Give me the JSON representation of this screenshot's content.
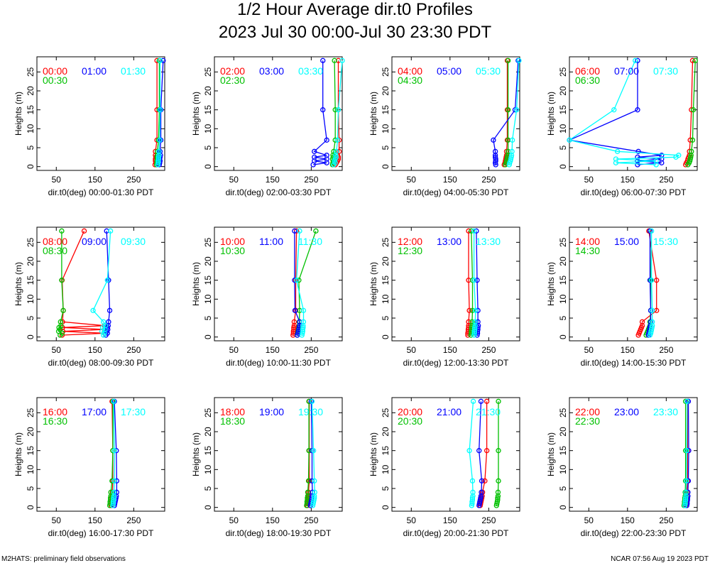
{
  "title": "1/2 Hour Average dir.t0 Profiles",
  "subtitle": "2023 Jul 30 00:00-Jul 30 23:30 PDT",
  "footer_left": "M2HATS: preliminary field observations",
  "footer_right": "NCAR 07:56 Aug 19 2023 PDT",
  "colors": [
    "#ff0000",
    "#00c000",
    "#0000ff",
    "#00ffff"
  ],
  "chart_data": {
    "type": "line",
    "ylabel": "Heights (m)",
    "xlim": [
      0,
      330
    ],
    "ylim": [
      -1,
      29
    ],
    "xticks": [
      50,
      150,
      250
    ],
    "yticks": [
      0,
      5,
      10,
      15,
      20,
      25
    ],
    "heights": [
      0.5,
      1,
      1.5,
      2,
      2.5,
      3,
      4,
      7,
      15,
      28
    ],
    "panels": [
      {
        "xlabel": "dir.t0(deg) 00:00-01:30 PDT",
        "series": [
          {
            "name": "00:00",
            "values": [
              305,
              307,
              306,
              306,
              307,
              306,
              306,
              310,
              310,
              310
            ]
          },
          {
            "name": "00:30",
            "values": [
              309,
              310,
              310,
              311,
              310,
              311,
              311,
              314,
              316,
              316
            ]
          },
          {
            "name": "01:00",
            "values": [
              316,
              317,
              318,
              317,
              318,
              319,
              318,
              320,
              320,
              326
            ]
          },
          {
            "name": "01:30",
            "values": [
              312,
              313,
              313,
              314,
              314,
              315,
              315,
              317,
              318,
              318
            ]
          }
        ]
      },
      {
        "xlabel": "dir.t0(deg) 02:00-03:30 PDT",
        "series": [
          {
            "name": "02:00",
            "values": [
              312,
              315,
              318,
              320,
              320,
              318,
              322,
              322,
              320,
              320
            ]
          },
          {
            "name": "02:30",
            "values": [
              305,
              306,
              308,
              305,
              307,
              306,
              308,
              312,
              312,
              310
            ]
          },
          {
            "name": "03:00",
            "values": [
              255,
              290,
              258,
              290,
              258,
              290,
              258,
              290,
              280,
              280
            ]
          },
          {
            "name": "03:30",
            "values": [
              308,
              312,
              310,
              312,
              314,
              313,
              315,
              318,
              320,
              330
            ]
          }
        ]
      },
      {
        "xlabel": "dir.t0(deg) 04:00-05:30 PDT",
        "series": [
          {
            "name": "04:00",
            "values": [
              290,
              292,
              293,
              294,
              295,
              296,
              296,
              298,
              298,
              298
            ]
          },
          {
            "name": "04:30",
            "values": [
              293,
              295,
              296,
              297,
              298,
              299,
              300,
              300,
              300,
              300
            ]
          },
          {
            "name": "05:00",
            "values": [
              268,
              267,
              268,
              268,
              267,
              267,
              267,
              262,
              318,
              326
            ]
          },
          {
            "name": "05:30",
            "values": [
              303,
              304,
              306,
              307,
              308,
              309,
              310,
              311,
              322,
              328
            ]
          }
        ]
      },
      {
        "xlabel": "dir.t0(deg) 06:00-07:30 PDT",
        "series": [
          {
            "name": "06:00",
            "values": [
              300,
              302,
              305,
              306,
              308,
              310,
              310,
              312,
              315,
              318
            ]
          },
          {
            "name": "06:30",
            "values": [
              306,
              309,
              311,
              312,
              313,
              314,
              315,
              318,
              320,
              325
            ]
          },
          {
            "name": "07:00",
            "values": [
              176,
              238,
              176,
              238,
              176,
              238,
              178,
              0,
              176,
              176
            ]
          },
          {
            "name": "07:30",
            "values": [
              224,
              120,
              224,
              120,
              275,
              282,
              124,
              0,
              115,
              170
            ]
          }
        ]
      },
      {
        "xlabel": "dir.t0(deg) 08:00-09:30 PDT",
        "series": [
          {
            "name": "08:00",
            "values": [
              65,
              175,
              67,
              175,
              66,
              175,
              66,
              68,
              65,
              122
            ]
          },
          {
            "name": "08:30",
            "values": [
              60,
              65,
              56,
              60,
              57,
              62,
              61,
              68,
              64,
              64
            ]
          },
          {
            "name": "09:00",
            "values": [
              178,
              182,
              180,
              183,
              182,
              184,
              185,
              188,
              185,
              180
            ]
          },
          {
            "name": "09:30",
            "values": [
              172,
              174,
              168,
              176,
              170,
              177,
              172,
              145,
              182,
              190
            ]
          }
        ]
      },
      {
        "xlabel": "dir.t0(deg) 10:00-11:30 PDT",
        "series": [
          {
            "name": "10:00",
            "values": [
              203,
              204,
              204,
              205,
              205,
              206,
              206,
              210,
              210,
              212
            ]
          },
          {
            "name": "10:30",
            "values": [
              214,
              215,
              216,
              217,
              218,
              219,
              219,
              220,
              218,
              262
            ]
          },
          {
            "name": "11:00",
            "values": [
              214,
              216,
              217,
              218,
              219,
              220,
              220,
              208,
              207,
              207
            ]
          },
          {
            "name": "11:30",
            "values": [
              226,
              227,
              228,
              228,
              229,
              229,
              230,
              230,
              212,
              220
            ]
          }
        ]
      },
      {
        "xlabel": "dir.t0(deg) 12:00-13:30 PDT",
        "series": [
          {
            "name": "12:00",
            "values": [
              196,
              196,
              197,
              197,
              198,
              198,
              198,
              200,
              198,
              198
            ]
          },
          {
            "name": "12:30",
            "values": [
              204,
              205,
              205,
              206,
              206,
              207,
              207,
              208,
              208,
              205
            ]
          },
          {
            "name": "13:00",
            "values": [
              220,
              221,
              221,
              222,
              222,
              223,
              222,
              222,
              220,
              218
            ]
          },
          {
            "name": "13:30",
            "values": [
              212,
              213,
              213,
              214,
              214,
              215,
              215,
              216,
              212,
              212
            ]
          }
        ]
      },
      {
        "xlabel": "dir.t0(deg) 14:00-15:30 PDT",
        "series": [
          {
            "name": "14:00",
            "values": [
              178,
              180,
              182,
              184,
              186,
              188,
              188,
              225,
              225,
              205
            ]
          },
          {
            "name": "14:30",
            "values": [
              198,
              200,
              202,
              204,
              206,
              208,
              208,
              210,
              210,
              208
            ]
          },
          {
            "name": "15:00",
            "values": [
              204,
              205,
              206,
              207,
              208,
              209,
              210,
              210,
              208,
              208
            ]
          },
          {
            "name": "15:30",
            "values": [
              208,
              210,
              211,
              212,
              213,
              214,
              214,
              214,
              212,
              212
            ]
          }
        ]
      },
      {
        "xlabel": "dir.t0(deg) 16:00-17:30 PDT",
        "series": [
          {
            "name": "16:00",
            "values": [
              192,
              193,
              193,
              194,
              194,
              195,
              195,
              196,
              196,
              194
            ]
          },
          {
            "name": "16:30",
            "values": [
              188,
              189,
              189,
              190,
              190,
              191,
              191,
              194,
              196,
              196
            ]
          },
          {
            "name": "17:00",
            "values": [
              200,
              201,
              202,
              203,
              204,
              205,
              206,
              206,
              205,
              200
            ]
          },
          {
            "name": "17:30",
            "values": [
              196,
              197,
              197,
              198,
              198,
              199,
              199,
              200,
              200,
              198
            ]
          }
        ]
      },
      {
        "xlabel": "dir.t0(deg) 18:00-19:30 PDT",
        "series": [
          {
            "name": "18:00",
            "values": [
              240,
              241,
              241,
              242,
              242,
              243,
              243,
              245,
              245,
              245
            ]
          },
          {
            "name": "18:30",
            "values": [
              238,
              239,
              239,
              240,
              240,
              241,
              241,
              243,
              244,
              244
            ]
          },
          {
            "name": "19:00",
            "values": [
              248,
              249,
              250,
              251,
              252,
              252,
              253,
              252,
              252,
              250
            ]
          },
          {
            "name": "19:30",
            "values": [
              254,
              255,
              256,
              257,
              258,
              258,
              259,
              258,
              256,
              252
            ]
          }
        ]
      },
      {
        "xlabel": "dir.t0(deg) 20:00-21:30 PDT",
        "series": [
          {
            "name": "20:00",
            "values": [
              228,
              229,
              230,
              231,
              232,
              233,
              234,
              240,
              245,
              245
            ]
          },
          {
            "name": "20:30",
            "values": [
              270,
              271,
              272,
              273,
              273,
              274,
              274,
              275,
              275,
              275
            ]
          },
          {
            "name": "21:00",
            "values": [
              225,
              226,
              227,
              228,
              229,
              230,
              231,
              232,
              225,
              230
            ]
          },
          {
            "name": "21:30",
            "values": [
              206,
              207,
              207,
              208,
              208,
              209,
              209,
              208,
              200,
              210
            ]
          }
        ]
      },
      {
        "xlabel": "dir.t0(deg) 22:00-23:30 PDT",
        "series": [
          {
            "name": "22:00",
            "values": [
              300,
              301,
              301,
              302,
              302,
              303,
              303,
              305,
              305,
              305
            ]
          },
          {
            "name": "22:30",
            "values": [
              296,
              297,
              297,
              298,
              298,
              299,
              299,
              300,
              300,
              300
            ]
          },
          {
            "name": "23:00",
            "values": [
              303,
              304,
              304,
              305,
              305,
              306,
              306,
              307,
              308,
              307
            ]
          },
          {
            "name": "23:30",
            "values": [
              298,
              299,
              299,
              300,
              300,
              301,
              301,
              302,
              303,
              304
            ]
          }
        ]
      }
    ]
  }
}
